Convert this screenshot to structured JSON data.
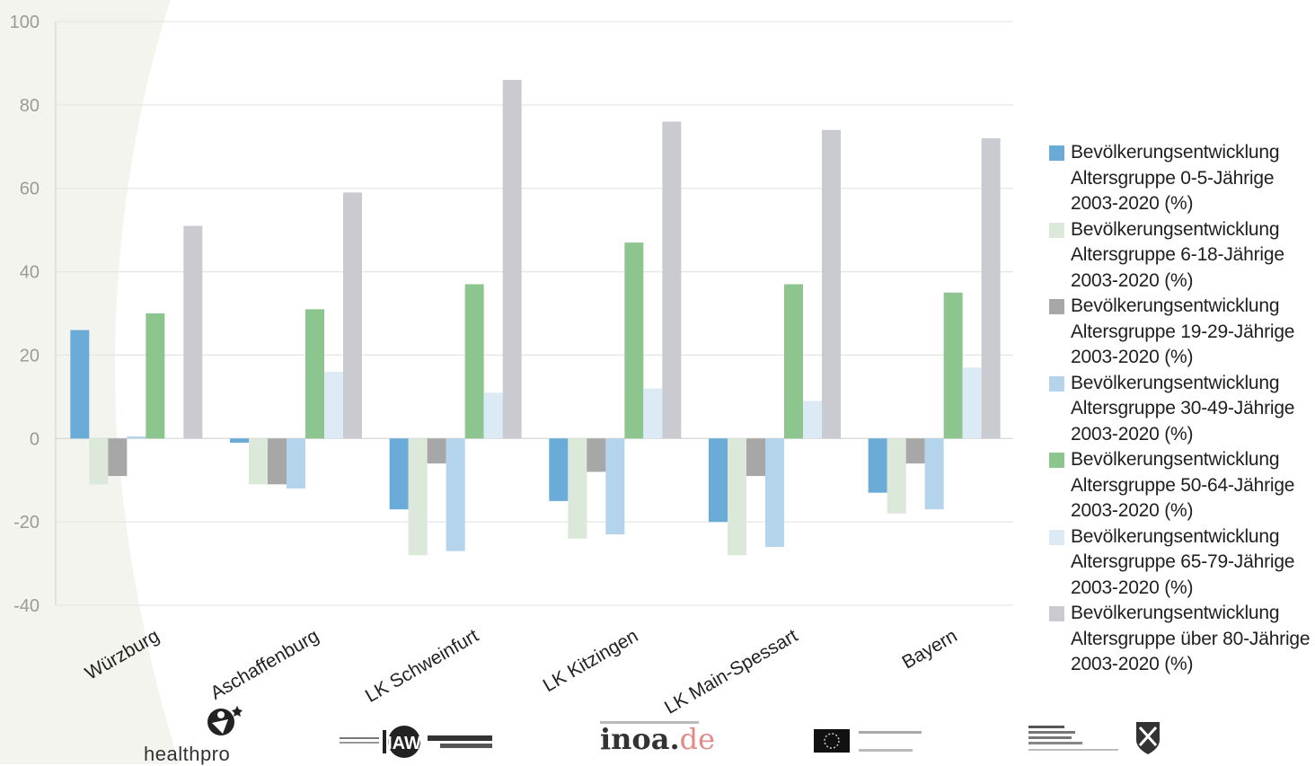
{
  "chart_data": {
    "type": "bar",
    "categories": [
      "Würzburg",
      "Aschaffenburg",
      "LK Schweinfurt",
      "LK Kitzingen",
      "LK Main-Spessart",
      "Bayern"
    ],
    "ylim": [
      -40,
      100
    ],
    "yticks": [
      "100",
      "80",
      "60",
      "40",
      "20",
      "0",
      "-20",
      "-40"
    ],
    "grid": true,
    "legend_position": "right",
    "series": [
      {
        "name": "Bevölkerungsentwicklung\nAltersgruppe 0-5-Jährige\n2003-2020 (%)",
        "color": "#6aabd8",
        "values": [
          26,
          -1,
          -17,
          -15,
          -20,
          -13
        ]
      },
      {
        "name": "Bevölkerungsentwicklung\nAltersgruppe 6-18-Jährige\n2003-2020 (%)",
        "color": "#dce8d9",
        "values": [
          -11,
          -11,
          -28,
          -24,
          -28,
          -18
        ]
      },
      {
        "name": "Bevölkerungsentwicklung\nAltersgruppe 19-29-Jährige\n2003-2020 (%)",
        "color": "#a7a7a7",
        "values": [
          -9,
          -11,
          -6,
          -8,
          -9,
          -6
        ]
      },
      {
        "name": "Bevölkerungsentwicklung\nAltersgruppe 30-49-Jährige\n2003-2020 (%)",
        "color": "#b3d4ea",
        "values": [
          0.5,
          -12,
          -27,
          -23,
          -26,
          -17
        ]
      },
      {
        "name": "Bevölkerungsentwicklung\nAltersgruppe 50-64-Jährige\n2003-2020 (%)",
        "color": "#8dc58f",
        "values": [
          30,
          31,
          37,
          47,
          37,
          35
        ]
      },
      {
        "name": "Bevölkerungsentwicklung\nAltersgruppe 65-79-Jährige\n2003-2020 (%)",
        "color": "#dceaf5",
        "values": [
          0,
          16,
          11,
          12,
          9,
          17
        ]
      },
      {
        "name": "Bevölkerungsentwicklung\nAltersgruppe über 80-Jährige\n2003-2020 (%)",
        "color": "#c9cbd1",
        "values": [
          51,
          59,
          86,
          76,
          74,
          72
        ]
      }
    ]
  },
  "logos": {
    "healthpro": "healthpro",
    "iaw": "IAW",
    "inoa_main": "inoa.",
    "inoa_accent": "de"
  },
  "icons": {
    "healthpro": "healthpro-figure-icon",
    "eu_flag": "eu-flag-icon",
    "nrw_crest": "nrw-crest-icon"
  }
}
